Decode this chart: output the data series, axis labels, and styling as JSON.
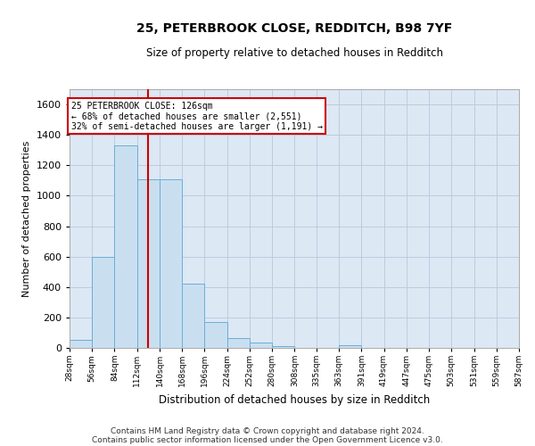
{
  "title": "25, PETERBROOK CLOSE, REDDITCH, B98 7YF",
  "subtitle": "Size of property relative to detached houses in Redditch",
  "xlabel": "Distribution of detached houses by size in Redditch",
  "ylabel": "Number of detached properties",
  "bar_color": "#c9dff0",
  "bar_edge_color": "#6aaed6",
  "grid_color": "#b8c8dc",
  "bg_color": "#dce8f4",
  "annotation_box_color": "#cc0000",
  "vline_color": "#cc0000",
  "vline_x": 4,
  "annotation_line1": "25 PETERBROOK CLOSE: 126sqm",
  "annotation_line2": "← 68% of detached houses are smaller (2,551)",
  "annotation_line3": "32% of semi-detached houses are larger (1,191) →",
  "bin_edges": [
    28,
    56,
    84,
    112,
    140,
    168,
    196,
    224,
    252,
    280,
    308,
    335,
    363,
    391,
    419,
    447,
    475,
    503,
    531,
    559,
    587
  ],
  "bin_labels": [
    "28sqm",
    "56sqm",
    "84sqm",
    "112sqm",
    "140sqm",
    "168sqm",
    "196sqm",
    "224sqm",
    "252sqm",
    "280sqm",
    "308sqm",
    "335sqm",
    "363sqm",
    "391sqm",
    "419sqm",
    "447sqm",
    "475sqm",
    "503sqm",
    "531sqm",
    "559sqm",
    "587sqm"
  ],
  "bar_heights": [
    50,
    600,
    1330,
    1110,
    1110,
    425,
    170,
    62,
    35,
    10,
    0,
    0,
    20,
    0,
    0,
    0,
    0,
    0,
    0,
    0
  ],
  "ylim": [
    0,
    1700
  ],
  "yticks": [
    0,
    200,
    400,
    600,
    800,
    1000,
    1200,
    1400,
    1600
  ],
  "footer_line1": "Contains HM Land Registry data © Crown copyright and database right 2024.",
  "footer_line2": "Contains public sector information licensed under the Open Government Licence v3.0.",
  "figsize": [
    6.0,
    5.0
  ],
  "dpi": 100
}
